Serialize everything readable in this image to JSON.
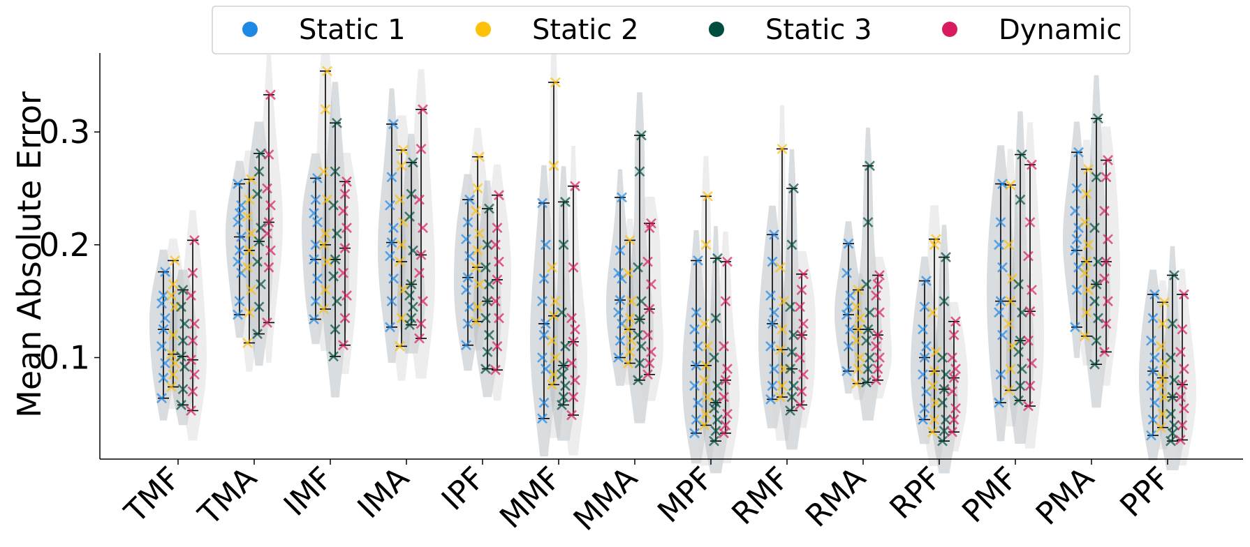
{
  "chart_data": {
    "type": "violin-scatter",
    "ylabel": "Mean Absolute Error",
    "ylim": [
      0.01,
      0.37
    ],
    "yticks": [
      0.1,
      0.2,
      0.3
    ],
    "ytick_labels": [
      "0.1",
      "0.2",
      "0.3"
    ],
    "categories": [
      "TMF",
      "TMA",
      "IMF",
      "IMA",
      "IPF",
      "MMF",
      "MMA",
      "MPF",
      "RMF",
      "RMA",
      "RPF",
      "PMF",
      "PMA",
      "PPF"
    ],
    "legend_position": "top-center",
    "series": [
      {
        "name": "Static 1",
        "color": "#1E88E5",
        "min": [
          0.064,
          0.138,
          0.134,
          0.127,
          0.111,
          0.046,
          0.1,
          0.033,
          0.063,
          0.088,
          0.045,
          0.06,
          0.127,
          0.031
        ],
        "max": [
          0.176,
          0.254,
          0.259,
          0.307,
          0.24,
          0.237,
          0.242,
          0.186,
          0.209,
          0.201,
          0.168,
          0.254,
          0.282,
          0.156
        ],
        "median": [
          0.125,
          0.207,
          0.187,
          0.202,
          0.171,
          0.13,
          0.151,
          0.093,
          0.13,
          0.138,
          0.1,
          0.15,
          0.195,
          0.088
        ],
        "points": [
          [
            0.064,
            0.082,
            0.095,
            0.11,
            0.125,
            0.135,
            0.148,
            0.155,
            0.176
          ],
          [
            0.138,
            0.15,
            0.175,
            0.185,
            0.195,
            0.207,
            0.22,
            0.228,
            0.235,
            0.254
          ],
          [
            0.134,
            0.15,
            0.17,
            0.187,
            0.2,
            0.22,
            0.228,
            0.24,
            0.259
          ],
          [
            0.127,
            0.15,
            0.17,
            0.19,
            0.202,
            0.215,
            0.235,
            0.26,
            0.307
          ],
          [
            0.111,
            0.13,
            0.145,
            0.16,
            0.171,
            0.19,
            0.205,
            0.22,
            0.24
          ],
          [
            0.046,
            0.06,
            0.09,
            0.1,
            0.12,
            0.13,
            0.15,
            0.17,
            0.2,
            0.237
          ],
          [
            0.1,
            0.115,
            0.13,
            0.14,
            0.151,
            0.17,
            0.175,
            0.195,
            0.242
          ],
          [
            0.033,
            0.045,
            0.06,
            0.075,
            0.093,
            0.11,
            0.125,
            0.14,
            0.186
          ],
          [
            0.063,
            0.075,
            0.09,
            0.11,
            0.13,
            0.14,
            0.155,
            0.185,
            0.209
          ],
          [
            0.088,
            0.11,
            0.125,
            0.138,
            0.145,
            0.155,
            0.175,
            0.201
          ],
          [
            0.045,
            0.055,
            0.07,
            0.085,
            0.1,
            0.11,
            0.125,
            0.145,
            0.168
          ],
          [
            0.06,
            0.085,
            0.12,
            0.14,
            0.15,
            0.18,
            0.2,
            0.22,
            0.254
          ],
          [
            0.127,
            0.16,
            0.18,
            0.195,
            0.205,
            0.215,
            0.23,
            0.25,
            0.282
          ],
          [
            0.031,
            0.045,
            0.06,
            0.075,
            0.088,
            0.1,
            0.115,
            0.135,
            0.156
          ]
        ]
      },
      {
        "name": "Static 2",
        "color": "#FFC107",
        "min": [
          0.074,
          0.113,
          0.143,
          0.11,
          0.132,
          0.076,
          0.095,
          0.04,
          0.065,
          0.077,
          0.034,
          0.071,
          0.119,
          0.038
        ],
        "max": [
          0.186,
          0.258,
          0.354,
          0.284,
          0.278,
          0.344,
          0.204,
          0.243,
          0.285,
          0.16,
          0.205,
          0.253,
          0.267,
          0.149
        ],
        "median": [
          0.103,
          0.195,
          0.2,
          0.185,
          0.18,
          0.137,
          0.125,
          0.093,
          0.107,
          0.125,
          0.088,
          0.15,
          0.185,
          0.082
        ],
        "points": [
          [
            0.074,
            0.085,
            0.095,
            0.103,
            0.12,
            0.145,
            0.155,
            0.165,
            0.186
          ],
          [
            0.113,
            0.14,
            0.16,
            0.18,
            0.195,
            0.21,
            0.225,
            0.24,
            0.258
          ],
          [
            0.143,
            0.16,
            0.185,
            0.2,
            0.21,
            0.24,
            0.265,
            0.32,
            0.354
          ],
          [
            0.11,
            0.135,
            0.16,
            0.185,
            0.2,
            0.22,
            0.24,
            0.27,
            0.284
          ],
          [
            0.132,
            0.145,
            0.165,
            0.18,
            0.195,
            0.21,
            0.23,
            0.25,
            0.278
          ],
          [
            0.076,
            0.085,
            0.1,
            0.115,
            0.137,
            0.15,
            0.18,
            0.27,
            0.344
          ],
          [
            0.095,
            0.105,
            0.115,
            0.125,
            0.135,
            0.15,
            0.175,
            0.204
          ],
          [
            0.04,
            0.05,
            0.065,
            0.08,
            0.093,
            0.11,
            0.13,
            0.2,
            0.243
          ],
          [
            0.065,
            0.075,
            0.09,
            0.107,
            0.125,
            0.15,
            0.18,
            0.285
          ],
          [
            0.077,
            0.09,
            0.1,
            0.115,
            0.125,
            0.135,
            0.145,
            0.16
          ],
          [
            0.034,
            0.045,
            0.06,
            0.075,
            0.088,
            0.105,
            0.14,
            0.2,
            0.205
          ],
          [
            0.071,
            0.09,
            0.11,
            0.13,
            0.15,
            0.17,
            0.2,
            0.253
          ],
          [
            0.119,
            0.14,
            0.16,
            0.175,
            0.185,
            0.2,
            0.22,
            0.245,
            0.267
          ],
          [
            0.038,
            0.05,
            0.065,
            0.075,
            0.082,
            0.095,
            0.11,
            0.13,
            0.149
          ]
        ]
      },
      {
        "name": "Static 3",
        "color": "#004D40",
        "min": [
          0.058,
          0.121,
          0.101,
          0.129,
          0.09,
          0.058,
          0.08,
          0.026,
          0.053,
          0.078,
          0.026,
          0.062,
          0.094,
          0.026
        ],
        "max": [
          0.16,
          0.281,
          0.308,
          0.273,
          0.232,
          0.238,
          0.297,
          0.188,
          0.25,
          0.27,
          0.189,
          0.28,
          0.312,
          0.173
        ],
        "median": [
          0.101,
          0.203,
          0.187,
          0.165,
          0.15,
          0.093,
          0.134,
          0.06,
          0.09,
          0.125,
          0.072,
          0.115,
          0.165,
          0.065
        ],
        "points": [
          [
            0.058,
            0.072,
            0.092,
            0.101,
            0.115,
            0.13,
            0.145,
            0.16
          ],
          [
            0.121,
            0.145,
            0.165,
            0.185,
            0.203,
            0.215,
            0.245,
            0.265,
            0.281
          ],
          [
            0.101,
            0.125,
            0.15,
            0.172,
            0.187,
            0.21,
            0.235,
            0.265,
            0.308
          ],
          [
            0.129,
            0.135,
            0.145,
            0.155,
            0.165,
            0.195,
            0.225,
            0.245,
            0.273
          ],
          [
            0.09,
            0.105,
            0.12,
            0.135,
            0.15,
            0.165,
            0.18,
            0.2,
            0.232
          ],
          [
            0.058,
            0.065,
            0.075,
            0.085,
            0.093,
            0.11,
            0.14,
            0.2,
            0.238
          ],
          [
            0.08,
            0.095,
            0.11,
            0.12,
            0.134,
            0.15,
            0.18,
            0.265,
            0.297
          ],
          [
            0.026,
            0.035,
            0.045,
            0.055,
            0.06,
            0.075,
            0.1,
            0.135,
            0.188
          ],
          [
            0.053,
            0.065,
            0.075,
            0.09,
            0.105,
            0.12,
            0.145,
            0.2,
            0.25
          ],
          [
            0.078,
            0.09,
            0.1,
            0.115,
            0.125,
            0.14,
            0.165,
            0.22,
            0.27
          ],
          [
            0.026,
            0.035,
            0.045,
            0.06,
            0.072,
            0.085,
            0.1,
            0.15,
            0.189
          ],
          [
            0.062,
            0.075,
            0.09,
            0.105,
            0.115,
            0.14,
            0.165,
            0.24,
            0.28
          ],
          [
            0.094,
            0.115,
            0.135,
            0.15,
            0.165,
            0.185,
            0.215,
            0.26,
            0.312
          ],
          [
            0.026,
            0.033,
            0.04,
            0.05,
            0.065,
            0.08,
            0.1,
            0.13,
            0.173
          ]
        ]
      },
      {
        "name": "Dynamic",
        "color": "#D81B60",
        "min": [
          0.053,
          0.131,
          0.111,
          0.117,
          0.089,
          0.049,
          0.085,
          0.033,
          0.058,
          0.08,
          0.034,
          0.057,
          0.105,
          0.027
        ],
        "max": [
          0.204,
          0.333,
          0.256,
          0.32,
          0.244,
          0.252,
          0.219,
          0.185,
          0.174,
          0.173,
          0.132,
          0.271,
          0.275,
          0.156
        ],
        "median": [
          0.098,
          0.22,
          0.197,
          0.191,
          0.169,
          0.114,
          0.143,
          0.08,
          0.12,
          0.12,
          0.082,
          0.141,
          0.185,
          0.076
        ],
        "points": [
          [
            0.053,
            0.07,
            0.085,
            0.098,
            0.115,
            0.13,
            0.155,
            0.175,
            0.204
          ],
          [
            0.131,
            0.18,
            0.195,
            0.21,
            0.22,
            0.235,
            0.25,
            0.28,
            0.333
          ],
          [
            0.111,
            0.135,
            0.155,
            0.175,
            0.197,
            0.215,
            0.23,
            0.245,
            0.256
          ],
          [
            0.117,
            0.13,
            0.15,
            0.175,
            0.191,
            0.215,
            0.24,
            0.285,
            0.32
          ],
          [
            0.089,
            0.11,
            0.135,
            0.15,
            0.169,
            0.185,
            0.2,
            0.215,
            0.244
          ],
          [
            0.049,
            0.065,
            0.08,
            0.095,
            0.114,
            0.125,
            0.135,
            0.18,
            0.252
          ],
          [
            0.085,
            0.095,
            0.105,
            0.12,
            0.143,
            0.165,
            0.185,
            0.215,
            0.219
          ],
          [
            0.033,
            0.04,
            0.05,
            0.065,
            0.08,
            0.09,
            0.11,
            0.15,
            0.185
          ],
          [
            0.058,
            0.07,
            0.085,
            0.1,
            0.12,
            0.13,
            0.145,
            0.16,
            0.174
          ],
          [
            0.08,
            0.09,
            0.1,
            0.11,
            0.12,
            0.14,
            0.155,
            0.165,
            0.173
          ],
          [
            0.034,
            0.045,
            0.055,
            0.07,
            0.082,
            0.09,
            0.1,
            0.12,
            0.132
          ],
          [
            0.057,
            0.075,
            0.095,
            0.115,
            0.141,
            0.16,
            0.19,
            0.22,
            0.271
          ],
          [
            0.105,
            0.13,
            0.15,
            0.17,
            0.185,
            0.205,
            0.23,
            0.26,
            0.275
          ],
          [
            0.027,
            0.04,
            0.055,
            0.065,
            0.076,
            0.09,
            0.105,
            0.125,
            0.156
          ]
        ]
      }
    ]
  }
}
